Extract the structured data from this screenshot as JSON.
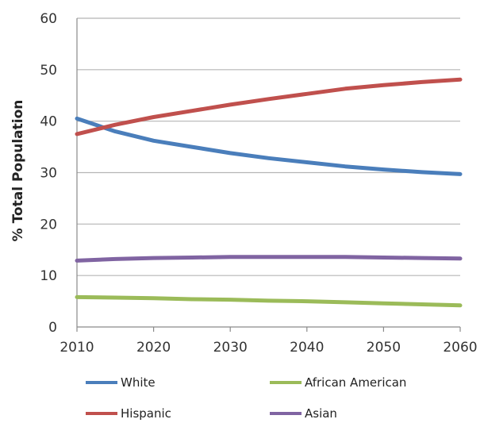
{
  "chart_data": {
    "type": "line",
    "title": "",
    "xlabel": "",
    "ylabel": "% Total Population",
    "x": [
      2010,
      2015,
      2020,
      2025,
      2030,
      2035,
      2040,
      2045,
      2050,
      2055,
      2060
    ],
    "xlim": [
      2010,
      2060
    ],
    "ylim": [
      0,
      60
    ],
    "xticks": [
      "2010",
      "2020",
      "2030",
      "2040",
      "2050",
      "2060"
    ],
    "yticks": [
      "0",
      "10",
      "20",
      "30",
      "40",
      "50",
      "60"
    ],
    "grid": true,
    "legend_position": "bottom",
    "series": [
      {
        "name": "White",
        "color": "#4a7ebb",
        "values": [
          40.5,
          38.0,
          36.2,
          35.0,
          33.8,
          32.8,
          32.0,
          31.2,
          30.6,
          30.1,
          29.7
        ]
      },
      {
        "name": "African American",
        "color": "#9bbb59",
        "values": [
          5.8,
          5.7,
          5.6,
          5.4,
          5.3,
          5.1,
          5.0,
          4.8,
          4.6,
          4.4,
          4.2
        ]
      },
      {
        "name": "Hispanic",
        "color": "#c0504d",
        "values": [
          37.5,
          39.3,
          40.8,
          42.0,
          43.2,
          44.3,
          45.3,
          46.3,
          47.0,
          47.6,
          48.1
        ]
      },
      {
        "name": "Asian",
        "color": "#8064a2",
        "values": [
          12.9,
          13.2,
          13.4,
          13.5,
          13.6,
          13.6,
          13.6,
          13.6,
          13.5,
          13.4,
          13.3
        ]
      }
    ]
  }
}
